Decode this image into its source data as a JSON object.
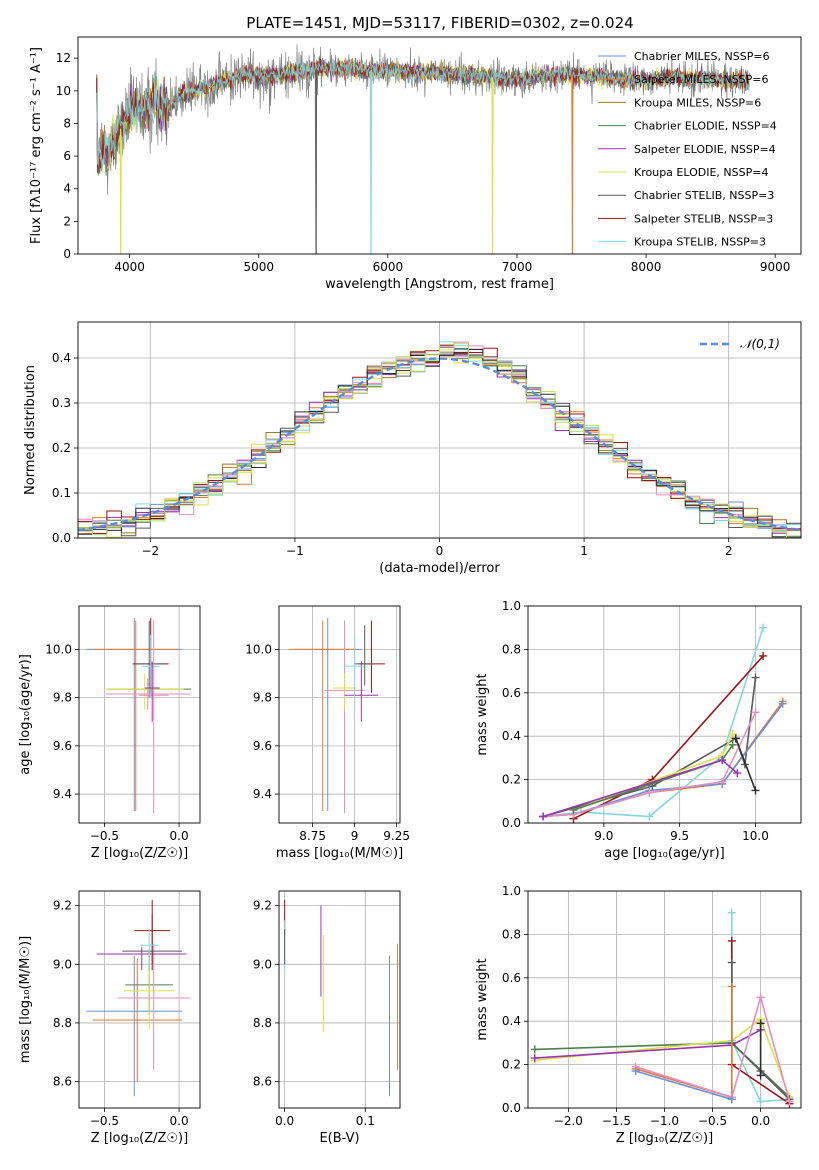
{
  "colors": [
    "#6f8fd6",
    "#e07b30",
    "#9c7a1e",
    "#4f7f4f",
    "#9b35b3",
    "#d9e04a",
    "#5a5a5a",
    "#9b1515",
    "#84d6dc",
    "#e58fbf",
    "#2c2c2c",
    "#b6e060"
  ],
  "chart_data": [
    {
      "id": "spectrum",
      "type": "line",
      "title": "PLATE=1451, MJD=53117, FIBERID=0302, z=0.024",
      "xlabel": "wavelength [Angstrom, rest frame]",
      "ylabel": "Flux [fλ10⁻¹⁷ erg cm⁻² s⁻¹ A⁻¹]",
      "xlim": [
        3600,
        9200
      ],
      "ylim": [
        0,
        13.3
      ],
      "xticks": [
        4000,
        5000,
        6000,
        7000,
        8000,
        9000
      ],
      "yticks": [
        0,
        2,
        4,
        6,
        8,
        10,
        12
      ],
      "legend": "top-right",
      "series": [
        {
          "name": "Chabrier MILES, NSSP=6",
          "color_index": 0
        },
        {
          "name": "Salpeter MILES, NSSP=6",
          "color_index": 1
        },
        {
          "name": "Kroupa MILES, NSSP=6",
          "color_index": 2
        },
        {
          "name": "Chabrier ELODIE, NSSP=4",
          "color_index": 3
        },
        {
          "name": "Salpeter ELODIE, NSSP=4",
          "color_index": 4
        },
        {
          "name": "Kroupa ELODIE, NSSP=4",
          "color_index": 5
        },
        {
          "name": "Chabrier STELIB, NSSP=3",
          "color_index": 6
        },
        {
          "name": "Salpeter STELIB, NSSP=3",
          "color_index": 7
        },
        {
          "name": "Kroupa STELIB, NSSP=3",
          "color_index": 8
        }
      ],
      "data_envelope": {
        "x": [
          3750,
          3800,
          3850,
          3900,
          3950,
          4000,
          4100,
          4200,
          4300,
          4400,
          4500,
          4700,
          4900,
          5100,
          5300,
          5500,
          5800,
          6100,
          6400,
          6700,
          7000,
          7300,
          7600,
          7900,
          8200,
          8500,
          8800
        ],
        "y": [
          5.5,
          6.5,
          6.2,
          7.5,
          7.8,
          8.6,
          9.0,
          9.3,
          8.9,
          9.8,
          10.0,
          10.5,
          11.0,
          10.9,
          11.2,
          11.4,
          11.3,
          11.2,
          11.1,
          10.9,
          10.7,
          11.0,
          10.9,
          10.6,
          10.8,
          10.7,
          10.6
        ]
      },
      "dips": [
        {
          "x": 3930,
          "y": 0,
          "color_index": 5
        },
        {
          "x": 5445,
          "y": 0,
          "color_index": 6
        },
        {
          "x": 5870,
          "y": 0,
          "color_index": 8
        },
        {
          "x": 6810,
          "y": 0,
          "color_index": 5
        },
        {
          "x": 7430,
          "y": 0,
          "color_index": 1
        }
      ]
    },
    {
      "id": "residuals",
      "type": "area",
      "xlabel": "(data-model)/error",
      "ylabel": "Normed distribution",
      "xlim": [
        -2.5,
        2.5
      ],
      "ylim": [
        0,
        0.48
      ],
      "xticks": [
        -2,
        -1,
        0,
        1,
        2
      ],
      "yticks": [
        0.0,
        0.1,
        0.2,
        0.3,
        0.4
      ],
      "grid": true,
      "legend": "top-right",
      "reference": {
        "name": "𝒩(0,1)",
        "mean": 0,
        "std": 1,
        "color": "#5b8bd6"
      },
      "bin_width": 0.1,
      "histogram_series": 12
    },
    {
      "id": "age_vs_Z",
      "type": "scatter",
      "xlabel": "Z [log₁₀(Z/Z☉)]",
      "ylabel": "age  [log₁₀(age/yr)]",
      "xlim": [
        -0.67,
        0.14
      ],
      "ylim": [
        9.28,
        10.18
      ],
      "xticks": [
        -0.5,
        0.0
      ],
      "yticks": [
        9.4,
        9.6,
        9.8,
        10.0
      ],
      "grid": true,
      "points": [
        {
          "x": -0.3,
          "y": 10.0,
          "xerr": 0.32,
          "ylo": 9.33,
          "yhi": 10.13,
          "c": 0
        },
        {
          "x": -0.29,
          "y": 10.0,
          "xerr": 0.28,
          "ylo": 9.33,
          "yhi": 10.12,
          "c": 1
        },
        {
          "x": -0.2,
          "y": 9.835,
          "xerr": 0.28,
          "ylo": 9.8,
          "yhi": 9.86,
          "c": 3
        },
        {
          "x": -0.23,
          "y": 9.835,
          "xerr": 0.26,
          "ylo": 9.75,
          "yhi": 9.9,
          "c": 5
        },
        {
          "x": -0.21,
          "y": 9.815,
          "xerr": 0.28,
          "ylo": 9.75,
          "yhi": 9.88,
          "c": 9
        },
        {
          "x": -0.19,
          "y": 9.94,
          "xerr": 0.12,
          "ylo": 9.82,
          "yhi": 10.13,
          "c": 7
        },
        {
          "x": -0.2,
          "y": 9.94,
          "xerr": 0.11,
          "ylo": 9.85,
          "yhi": 10.12,
          "c": 6
        },
        {
          "x": -0.19,
          "y": 9.93,
          "xerr": 0.06,
          "ylo": 9.8,
          "yhi": 10.06,
          "c": 8
        },
        {
          "x": -0.17,
          "y": 9.81,
          "xerr": 0.1,
          "ylo": 9.32,
          "yhi": 10.12,
          "c": 9
        },
        {
          "x": -0.18,
          "y": 9.84,
          "xerr": 0.05,
          "ylo": 9.7,
          "yhi": 9.95,
          "c": 4
        }
      ]
    },
    {
      "id": "age_vs_mass",
      "type": "scatter",
      "xlabel": "mass [log₁₀(M/M☉)]",
      "xlim": [
        8.55,
        9.27
      ],
      "ylim": [
        9.28,
        10.18
      ],
      "xticks": [
        8.75,
        9.0,
        9.25
      ],
      "yticks": [
        9.4,
        9.6,
        9.8,
        10.0
      ],
      "grid": true,
      "points": [
        {
          "x": 8.84,
          "y": 10.0,
          "xerr": 0.2,
          "ylo": 9.33,
          "yhi": 10.13,
          "c": 0
        },
        {
          "x": 8.81,
          "y": 10.0,
          "xerr": 0.2,
          "ylo": 9.33,
          "yhi": 10.12,
          "c": 1
        },
        {
          "x": 8.94,
          "y": 9.83,
          "xerr": 0.12,
          "ylo": 9.32,
          "yhi": 10.12,
          "c": 9
        },
        {
          "x": 8.94,
          "y": 9.84,
          "xerr": 0.07,
          "ylo": 9.75,
          "yhi": 9.9,
          "c": 5
        },
        {
          "x": 9.04,
          "y": 9.81,
          "xerr": 0.1,
          "ylo": 9.7,
          "yhi": 9.95,
          "c": 4
        },
        {
          "x": 9.1,
          "y": 9.94,
          "xerr": 0.08,
          "ylo": 9.82,
          "yhi": 10.12,
          "c": 7
        },
        {
          "x": 9.06,
          "y": 9.94,
          "xerr": 0.06,
          "ylo": 9.85,
          "yhi": 10.1,
          "c": 6
        },
        {
          "x": 9.0,
          "y": 9.93,
          "xerr": 0.06,
          "ylo": 9.8,
          "yhi": 10.06,
          "c": 8
        }
      ]
    },
    {
      "id": "weight_vs_age",
      "type": "line",
      "xlabel": "age  [log₁₀(age/yr)]",
      "ylabel": "mass weight",
      "xlim": [
        8.5,
        10.3
      ],
      "ylim": [
        0,
        1.0
      ],
      "xticks": [
        9.0,
        9.5,
        10.0
      ],
      "yticks": [
        0.0,
        0.2,
        0.4,
        0.6,
        0.8,
        1.0
      ],
      "grid": true,
      "series": [
        {
          "c": 8,
          "x": [
            8.6,
            8.85,
            9.3,
            9.78,
            10.05
          ],
          "y": [
            0.03,
            0.05,
            0.03,
            0.31,
            0.9
          ]
        },
        {
          "c": 7,
          "x": [
            8.8,
            9.32,
            10.05
          ],
          "y": [
            0.02,
            0.2,
            0.77
          ]
        },
        {
          "c": 6,
          "x": [
            8.6,
            9.32,
            9.87,
            9.93,
            10.0
          ],
          "y": [
            0.03,
            0.17,
            0.39,
            0.27,
            0.67
          ]
        },
        {
          "c": 1,
          "x": [
            8.6,
            8.8,
            9.3,
            9.78,
            10.18
          ],
          "y": [
            0.03,
            0.04,
            0.14,
            0.18,
            0.56
          ]
        },
        {
          "c": 0,
          "x": [
            8.6,
            8.8,
            9.3,
            9.78,
            10.18
          ],
          "y": [
            0.03,
            0.04,
            0.15,
            0.18,
            0.55
          ]
        },
        {
          "c": 9,
          "x": [
            8.6,
            8.8,
            9.3,
            9.78,
            10.0
          ],
          "y": [
            0.03,
            0.04,
            0.14,
            0.19,
            0.51
          ]
        },
        {
          "c": 5,
          "x": [
            8.8,
            9.78,
            9.85
          ],
          "y": [
            0.06,
            0.31,
            0.41
          ]
        },
        {
          "c": 3,
          "x": [
            8.8,
            9.78,
            9.85
          ],
          "y": [
            0.06,
            0.29,
            0.36
          ]
        },
        {
          "c": 4,
          "x": [
            8.6,
            9.78,
            9.88
          ],
          "y": [
            0.03,
            0.29,
            0.23
          ]
        },
        {
          "c": 10,
          "x": [
            9.87,
            10.0
          ],
          "y": [
            0.39,
            0.15
          ]
        }
      ]
    },
    {
      "id": "mass_vs_Z",
      "type": "scatter",
      "xlabel": "Z [log₁₀(Z/Z☉)]",
      "ylabel": "mass [log₁₀(M/M☉)]",
      "xlim": [
        -0.67,
        0.14
      ],
      "ylim": [
        8.51,
        9.25
      ],
      "xticks": [
        -0.5,
        0.0
      ],
      "yticks": [
        8.6,
        8.8,
        9.0,
        9.2
      ],
      "grid": true,
      "points": [
        {
          "x": -0.3,
          "y": 8.84,
          "xerr": 0.32,
          "ylo": 8.55,
          "yhi": 9.03,
          "c": 0
        },
        {
          "x": -0.28,
          "y": 8.81,
          "xerr": 0.3,
          "ylo": 8.6,
          "yhi": 9.02,
          "c": 1
        },
        {
          "x": -0.2,
          "y": 8.93,
          "xerr": 0.16,
          "ylo": 8.83,
          "yhi": 9.05,
          "c": 3
        },
        {
          "x": -0.2,
          "y": 8.91,
          "xerr": 0.17,
          "ylo": 8.78,
          "yhi": 9.05,
          "c": 5
        },
        {
          "x": -0.17,
          "y": 8.885,
          "xerr": 0.24,
          "ylo": 8.64,
          "yhi": 9.07,
          "c": 9
        },
        {
          "x": -0.25,
          "y": 9.035,
          "xerr": 0.3,
          "ylo": 8.98,
          "yhi": 9.06,
          "c": 4
        },
        {
          "x": -0.18,
          "y": 9.045,
          "xerr": 0.2,
          "ylo": 9.0,
          "yhi": 9.17,
          "c": 6
        },
        {
          "x": -0.18,
          "y": 9.115,
          "xerr": 0.12,
          "ylo": 8.98,
          "yhi": 9.22,
          "c": 7
        },
        {
          "x": -0.2,
          "y": 9.065,
          "xerr": 0.06,
          "ylo": 8.98,
          "yhi": 9.12,
          "c": 8
        }
      ]
    },
    {
      "id": "mass_vs_ebv",
      "type": "scatter",
      "xlabel": "E(B-V)",
      "xlim": [
        -0.007,
        0.143
      ],
      "ylim": [
        8.51,
        9.25
      ],
      "xticks": [
        0.0,
        0.1
      ],
      "yticks": [
        8.6,
        8.8,
        9.0,
        9.2
      ],
      "grid": true,
      "points": [
        {
          "x": 0.0,
          "ylo": 9.1,
          "yhi": 9.22,
          "c": 7
        },
        {
          "x": 0.0,
          "ylo": 8.98,
          "yhi": 9.15,
          "c": 8
        },
        {
          "x": 0.0,
          "ylo": 9.0,
          "yhi": 9.12,
          "c": 6
        },
        {
          "x": 0.045,
          "ylo": 8.89,
          "yhi": 9.2,
          "c": 4
        },
        {
          "x": 0.048,
          "ylo": 8.77,
          "yhi": 9.1,
          "c": 5
        },
        {
          "x": 0.13,
          "ylo": 8.55,
          "yhi": 9.03,
          "c": 0
        },
        {
          "x": 0.14,
          "ylo": 8.64,
          "yhi": 9.07,
          "c": 1
        }
      ]
    },
    {
      "id": "weight_vs_Z",
      "type": "line",
      "xlabel": "Z [log₁₀(Z/Z☉)]",
      "ylabel": "mass weight",
      "xlim": [
        -2.42,
        0.42
      ],
      "ylim": [
        0,
        1.0
      ],
      "xticks": [
        -2.0,
        -1.5,
        -1.0,
        -0.5,
        0.0
      ],
      "yticks": [
        0.0,
        0.2,
        0.4,
        0.6,
        0.8,
        1.0
      ],
      "grid": true,
      "series": [
        {
          "c": 3,
          "x": [
            -2.35,
            -0.3,
            0.3
          ],
          "y": [
            0.27,
            0.3,
            0.05
          ]
        },
        {
          "c": 5,
          "x": [
            -2.35,
            -0.3,
            0.0,
            0.3
          ],
          "y": [
            0.22,
            0.31,
            0.41,
            0.05
          ]
        },
        {
          "c": 4,
          "x": [
            -2.35,
            -0.3,
            0.0
          ],
          "y": [
            0.23,
            0.29,
            0.36
          ]
        },
        {
          "c": 8,
          "x": [
            -0.3,
            -0.3,
            0.0,
            0.3
          ],
          "y": [
            0.9,
            0.31,
            0.03,
            0.04
          ]
        },
        {
          "c": 7,
          "x": [
            -0.3,
            -0.3,
            0.3
          ],
          "y": [
            0.77,
            0.2,
            0.02
          ]
        },
        {
          "c": 6,
          "x": [
            -0.3,
            -0.3,
            0.0,
            0.3
          ],
          "y": [
            0.67,
            0.3,
            0.17,
            0.04
          ]
        },
        {
          "c": 1,
          "x": [
            -1.3,
            -0.3,
            -0.3,
            -0.3
          ],
          "y": [
            0.18,
            0.05,
            0.56,
            0.04
          ]
        },
        {
          "c": 9,
          "x": [
            -1.3,
            -0.3,
            0.0,
            0.3
          ],
          "y": [
            0.19,
            0.05,
            0.51,
            0.03
          ]
        },
        {
          "c": 0,
          "x": [
            -1.3,
            -0.3
          ],
          "y": [
            0.17,
            0.04
          ]
        },
        {
          "c": 10,
          "x": [
            0.0,
            0.0
          ],
          "y": [
            0.39,
            0.15
          ]
        }
      ]
    }
  ]
}
